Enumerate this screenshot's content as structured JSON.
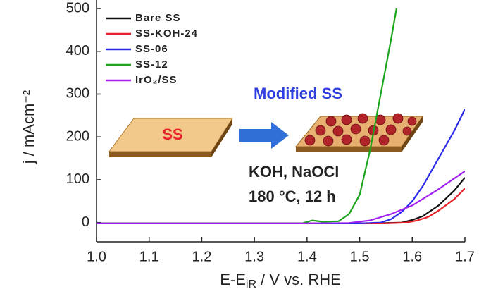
{
  "chart_data": {
    "type": "line",
    "x_label": {
      "main": "E-E",
      "sub": "iR",
      "rest": " / V vs. RHE"
    },
    "y_label": "j / mAcm⁻²",
    "xlim": [
      1.0,
      1.7
    ],
    "xticks": [
      {
        "value": 1.0,
        "label": "1.0"
      },
      1.1,
      1.2,
      1.3,
      1.4,
      1.5,
      1.6,
      1.7
    ],
    "ylim": [
      -45,
      500
    ],
    "yticks": [
      0,
      100,
      200,
      300,
      400,
      500
    ],
    "legend": "upper left",
    "series": [
      {
        "name": "Bare SS",
        "color": "#111111",
        "x": [
          1.0,
          1.2,
          1.4,
          1.5,
          1.55,
          1.58,
          1.6,
          1.62,
          1.65,
          1.68,
          1.7
        ],
        "values": [
          -2,
          -2,
          -2,
          -2,
          -1,
          0,
          6,
          15,
          40,
          75,
          105
        ]
      },
      {
        "name": "SS-KOH-24",
        "color": "#e8202a",
        "x": [
          1.0,
          1.2,
          1.4,
          1.5,
          1.55,
          1.59,
          1.61,
          1.63,
          1.65,
          1.68,
          1.7
        ],
        "values": [
          -2,
          -2,
          -2,
          -2,
          -2,
          0,
          5,
          13,
          28,
          55,
          80
        ]
      },
      {
        "name": "SS-06",
        "color": "#2a2ae8",
        "x": [
          1.0,
          1.2,
          1.4,
          1.5,
          1.54,
          1.56,
          1.58,
          1.6,
          1.62,
          1.65,
          1.68,
          1.7
        ],
        "values": [
          -2,
          -2,
          -2,
          -2,
          0,
          8,
          25,
          50,
          85,
          150,
          215,
          265
        ]
      },
      {
        "name": "SS-12",
        "color": "#1aa51a",
        "x": [
          1.0,
          1.2,
          1.39,
          1.41,
          1.43,
          1.46,
          1.48,
          1.5,
          1.52,
          1.54,
          1.56,
          1.57
        ],
        "values": [
          -2,
          -2,
          -2,
          5,
          2,
          3,
          20,
          65,
          170,
          300,
          430,
          500
        ]
      },
      {
        "name": "IrO₂/SS",
        "color": "#a020f0",
        "x": [
          1.0,
          1.2,
          1.4,
          1.48,
          1.52,
          1.56,
          1.6,
          1.65,
          1.7
        ],
        "values": [
          -2,
          -2,
          -2,
          -1,
          5,
          20,
          40,
          78,
          120
        ]
      }
    ],
    "annotations": {
      "plate": "SS",
      "modified": "Modified SS",
      "reagents": "KOH, NaOCl",
      "conditions": "180 °C, 12 h"
    }
  }
}
